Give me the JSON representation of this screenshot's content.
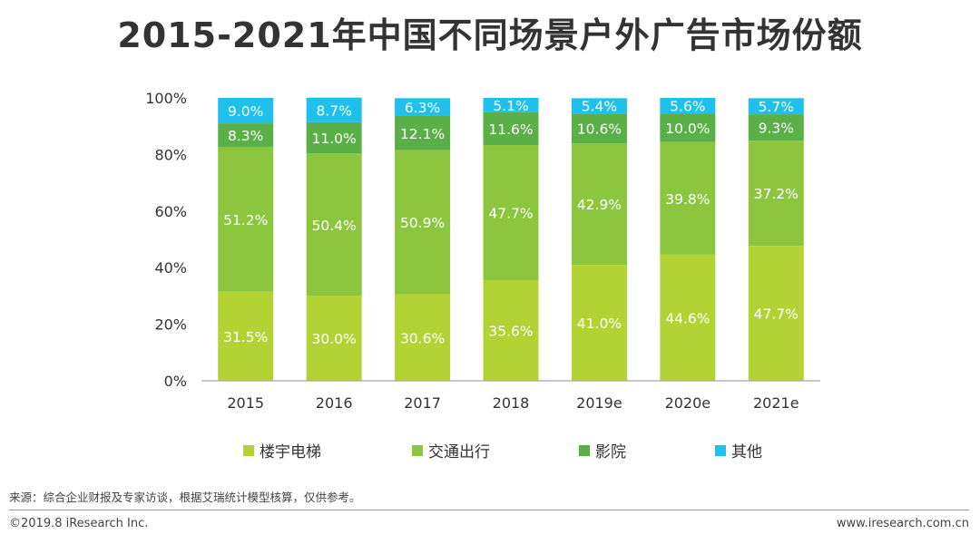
{
  "chart_data": {
    "type": "bar",
    "stacked": true,
    "title": "2015-2021年中国不同场景户外广告市场份额",
    "categories": [
      "2015",
      "2016",
      "2017",
      "2018",
      "2019e",
      "2020e",
      "2021e"
    ],
    "ylim": [
      0,
      100
    ],
    "yticks": [
      "0%",
      "20%",
      "40%",
      "60%",
      "80%",
      "100%"
    ],
    "series": [
      {
        "name": "楼宇电梯",
        "color": "#b3d334",
        "values": [
          31.5,
          30.0,
          30.6,
          35.6,
          41.0,
          44.6,
          47.7
        ],
        "labels": [
          "31.5%",
          "30.0%",
          "30.6%",
          "35.6%",
          "41.0%",
          "44.6%",
          "47.7%"
        ]
      },
      {
        "name": "交通出行",
        "color": "#8cc63f",
        "values": [
          51.2,
          50.4,
          50.9,
          47.7,
          42.9,
          39.8,
          37.2
        ],
        "labels": [
          "51.2%",
          "50.4%",
          "50.9%",
          "47.7%",
          "42.9%",
          "39.8%",
          "37.2%"
        ]
      },
      {
        "name": "影院",
        "color": "#5aaf47",
        "values": [
          8.3,
          11.0,
          12.1,
          11.6,
          10.6,
          10.0,
          9.3
        ],
        "labels": [
          "8.3%",
          "11.0%",
          "12.1%",
          "11.6%",
          "10.6%",
          "10.0%",
          "9.3%"
        ]
      },
      {
        "name": "其他",
        "color": "#1fc1ec",
        "values": [
          9.0,
          8.7,
          6.3,
          5.1,
          5.4,
          5.6,
          5.7
        ],
        "labels": [
          "9.0%",
          "8.7%",
          "6.3%",
          "5.1%",
          "5.4%",
          "5.6%",
          "5.7%"
        ]
      }
    ],
    "legend_position": "bottom"
  },
  "footer": {
    "source": "来源：综合企业财报及专家访谈，根据艾瑞统计模型核算，仅供参考。",
    "copyright": "©2019.8 iResearch Inc.",
    "website": "www.iresearch.com.cn"
  }
}
